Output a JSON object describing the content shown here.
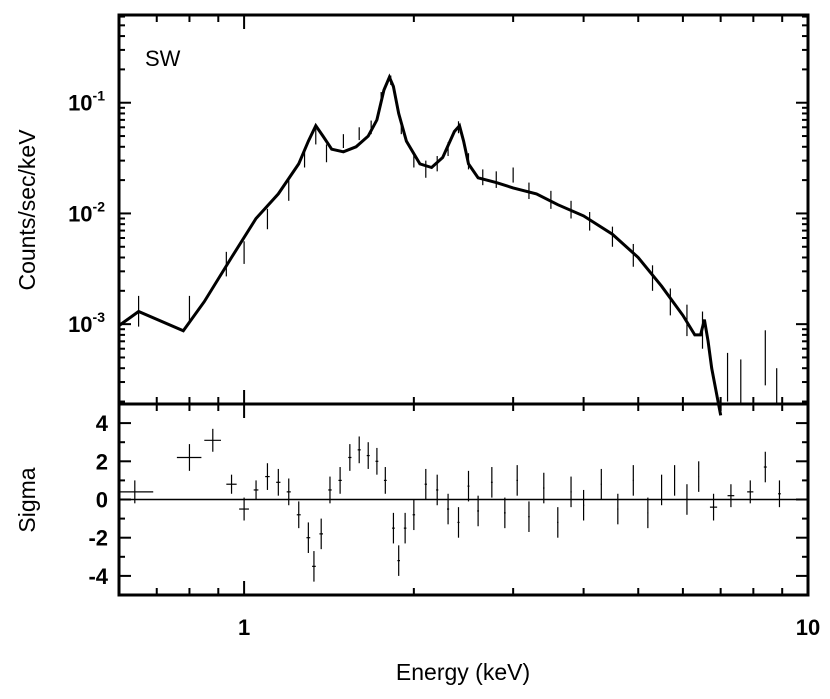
{
  "chart_data": [
    {
      "panel": "spectrum",
      "type": "line",
      "annotation": "SW",
      "xlabel": "Energy (keV)",
      "ylabel": "Counts/sec/keV",
      "x_scale": "log",
      "y_scale": "log",
      "xlim": [
        0.6,
        10
      ],
      "ylim": [
        0.00019,
        0.62
      ],
      "y_ticks": [
        {
          "value": 0.1,
          "base": "10",
          "exp": "-1"
        },
        {
          "value": 0.01,
          "base": "10",
          "exp": "-2"
        },
        {
          "value": 0.001,
          "base": "10",
          "exp": "-3"
        }
      ],
      "model_line": {
        "x": [
          0.6,
          0.65,
          0.78,
          0.85,
          0.95,
          1.05,
          1.15,
          1.25,
          1.3,
          1.34,
          1.38,
          1.43,
          1.5,
          1.58,
          1.66,
          1.72,
          1.77,
          1.81,
          1.84,
          1.88,
          1.94,
          2.05,
          2.15,
          2.25,
          2.36,
          2.41,
          2.45,
          2.5,
          2.6,
          2.8,
          3.0,
          3.3,
          3.6,
          4.0,
          4.5,
          5.0,
          5.5,
          6.0,
          6.3,
          6.45,
          6.55,
          6.65,
          6.75,
          7.0
        ],
        "y": [
          0.00097,
          0.0013,
          0.00087,
          0.0016,
          0.004,
          0.009,
          0.015,
          0.028,
          0.045,
          0.062,
          0.05,
          0.038,
          0.036,
          0.04,
          0.05,
          0.07,
          0.13,
          0.17,
          0.14,
          0.08,
          0.045,
          0.028,
          0.026,
          0.032,
          0.055,
          0.062,
          0.045,
          0.028,
          0.021,
          0.019,
          0.017,
          0.015,
          0.012,
          0.0095,
          0.0065,
          0.004,
          0.0022,
          0.0012,
          0.0008,
          0.0008,
          0.0011,
          0.0007,
          0.0004,
          0.00015
        ]
      },
      "data_points": [
        {
          "x": 0.65,
          "y": 0.0013,
          "y_lo": 0.00095,
          "y_hi": 0.0018
        },
        {
          "x": 0.8,
          "y": 0.0014,
          "y_lo": 0.001,
          "y_hi": 0.0018
        },
        {
          "x": 0.93,
          "y": 0.0035,
          "y_lo": 0.0027,
          "y_hi": 0.0045
        },
        {
          "x": 1.0,
          "y": 0.0045,
          "y_lo": 0.0035,
          "y_hi": 0.0056
        },
        {
          "x": 1.1,
          "y": 0.009,
          "y_lo": 0.0072,
          "y_hi": 0.011
        },
        {
          "x": 1.2,
          "y": 0.016,
          "y_lo": 0.013,
          "y_hi": 0.02
        },
        {
          "x": 1.28,
          "y": 0.032,
          "y_lo": 0.026,
          "y_hi": 0.039
        },
        {
          "x": 1.34,
          "y": 0.05,
          "y_lo": 0.042,
          "y_hi": 0.058
        },
        {
          "x": 1.4,
          "y": 0.035,
          "y_lo": 0.029,
          "y_hi": 0.042
        },
        {
          "x": 1.5,
          "y": 0.045,
          "y_lo": 0.039,
          "y_hi": 0.052
        },
        {
          "x": 1.6,
          "y": 0.053,
          "y_lo": 0.046,
          "y_hi": 0.06
        },
        {
          "x": 1.68,
          "y": 0.06,
          "y_lo": 0.052,
          "y_hi": 0.069
        },
        {
          "x": 1.75,
          "y": 0.11,
          "y_lo": 0.097,
          "y_hi": 0.125
        },
        {
          "x": 1.82,
          "y": 0.16,
          "y_lo": 0.145,
          "y_hi": 0.176
        },
        {
          "x": 1.9,
          "y": 0.06,
          "y_lo": 0.052,
          "y_hi": 0.068
        },
        {
          "x": 2.0,
          "y": 0.031,
          "y_lo": 0.026,
          "y_hi": 0.036
        },
        {
          "x": 2.1,
          "y": 0.025,
          "y_lo": 0.021,
          "y_hi": 0.03
        },
        {
          "x": 2.2,
          "y": 0.028,
          "y_lo": 0.024,
          "y_hi": 0.033
        },
        {
          "x": 2.3,
          "y": 0.038,
          "y_lo": 0.033,
          "y_hi": 0.044
        },
        {
          "x": 2.4,
          "y": 0.06,
          "y_lo": 0.053,
          "y_hi": 0.068
        },
        {
          "x": 2.5,
          "y": 0.03,
          "y_lo": 0.025,
          "y_hi": 0.035
        },
        {
          "x": 2.65,
          "y": 0.021,
          "y_lo": 0.018,
          "y_hi": 0.025
        },
        {
          "x": 2.8,
          "y": 0.02,
          "y_lo": 0.017,
          "y_hi": 0.024
        },
        {
          "x": 3.0,
          "y": 0.022,
          "y_lo": 0.019,
          "y_hi": 0.026
        },
        {
          "x": 3.2,
          "y": 0.016,
          "y_lo": 0.0135,
          "y_hi": 0.019
        },
        {
          "x": 3.5,
          "y": 0.0135,
          "y_lo": 0.011,
          "y_hi": 0.016
        },
        {
          "x": 3.8,
          "y": 0.011,
          "y_lo": 0.009,
          "y_hi": 0.013
        },
        {
          "x": 4.1,
          "y": 0.0085,
          "y_lo": 0.007,
          "y_hi": 0.0103
        },
        {
          "x": 4.5,
          "y": 0.0062,
          "y_lo": 0.005,
          "y_hi": 0.0076
        },
        {
          "x": 4.9,
          "y": 0.0042,
          "y_lo": 0.0033,
          "y_hi": 0.0053
        },
        {
          "x": 5.3,
          "y": 0.0026,
          "y_lo": 0.002,
          "y_hi": 0.0034
        },
        {
          "x": 5.7,
          "y": 0.0016,
          "y_lo": 0.0012,
          "y_hi": 0.0021
        },
        {
          "x": 6.1,
          "y": 0.0011,
          "y_lo": 0.00078,
          "y_hi": 0.0015
        },
        {
          "x": 6.5,
          "y": 0.0009,
          "y_lo": 0.0006,
          "y_hi": 0.0013
        },
        {
          "x": 7.2,
          "y": 0.00035,
          "y_lo": 0.0002,
          "y_hi": 0.00055
        },
        {
          "x": 7.6,
          "y": 0.0003,
          "y_lo": 0.00019,
          "y_hi": 0.00048
        },
        {
          "x": 8.4,
          "y": 0.0005,
          "y_lo": 0.00028,
          "y_hi": 0.00088
        },
        {
          "x": 8.8,
          "y": 0.00025,
          "y_lo": 0.00019,
          "y_hi": 0.0004
        }
      ]
    },
    {
      "panel": "residuals",
      "type": "scatter",
      "xlabel": "Energy (keV)",
      "ylabel": "Sigma",
      "x_scale": "log",
      "xlim": [
        0.6,
        10
      ],
      "ylim": [
        -5.0,
        5.0
      ],
      "x_tick_labels": [
        {
          "value": 1,
          "label": "1"
        },
        {
          "value": 10,
          "label": "10"
        }
      ],
      "y_tick_labels": [
        "4",
        "2",
        "0",
        "-2",
        "-4"
      ],
      "zero_line": 0,
      "points": [
        {
          "x": 0.64,
          "x_lo": 0.6,
          "x_hi": 0.69,
          "y": 0.4,
          "err": 0.6
        },
        {
          "x": 0.8,
          "x_lo": 0.76,
          "x_hi": 0.84,
          "y": 2.2,
          "err": 0.7
        },
        {
          "x": 0.88,
          "x_lo": 0.85,
          "x_hi": 0.91,
          "y": 3.1,
          "err": 0.6
        },
        {
          "x": 0.95,
          "x_lo": 0.93,
          "x_hi": 0.97,
          "y": 0.8,
          "err": 0.5
        },
        {
          "x": 1.0,
          "x_lo": 0.98,
          "x_hi": 1.02,
          "y": -0.5,
          "err": 0.6
        },
        {
          "x": 1.05,
          "x_lo": 1.04,
          "x_hi": 1.06,
          "y": 0.5,
          "err": 0.5
        },
        {
          "x": 1.1,
          "x_lo": 1.09,
          "x_hi": 1.11,
          "y": 1.2,
          "err": 0.7
        },
        {
          "x": 1.15,
          "x_lo": 1.14,
          "x_hi": 1.16,
          "y": 0.9,
          "err": 0.7
        },
        {
          "x": 1.2,
          "x_lo": 1.19,
          "x_hi": 1.21,
          "y": 0.4,
          "err": 0.7
        },
        {
          "x": 1.25,
          "x_lo": 1.24,
          "x_hi": 1.26,
          "y": -0.8,
          "err": 0.7
        },
        {
          "x": 1.3,
          "x_lo": 1.29,
          "x_hi": 1.31,
          "y": -2.0,
          "err": 0.8
        },
        {
          "x": 1.33,
          "x_lo": 1.32,
          "x_hi": 1.34,
          "y": -3.5,
          "err": 0.8
        },
        {
          "x": 1.37,
          "x_lo": 1.36,
          "x_hi": 1.38,
          "y": -1.8,
          "err": 0.8
        },
        {
          "x": 1.42,
          "x_lo": 1.41,
          "x_hi": 1.43,
          "y": 0.5,
          "err": 0.7
        },
        {
          "x": 1.48,
          "x_lo": 1.47,
          "x_hi": 1.49,
          "y": 1.0,
          "err": 0.7
        },
        {
          "x": 1.54,
          "x_lo": 1.53,
          "x_hi": 1.55,
          "y": 2.2,
          "err": 0.7
        },
        {
          "x": 1.6,
          "x_lo": 1.59,
          "x_hi": 1.61,
          "y": 2.6,
          "err": 0.7
        },
        {
          "x": 1.66,
          "x_lo": 1.65,
          "x_hi": 1.67,
          "y": 2.3,
          "err": 0.7
        },
        {
          "x": 1.72,
          "x_lo": 1.71,
          "x_hi": 1.73,
          "y": 2.0,
          "err": 0.7
        },
        {
          "x": 1.78,
          "x_lo": 1.77,
          "x_hi": 1.79,
          "y": 1.0,
          "err": 0.7
        },
        {
          "x": 1.84,
          "x_lo": 1.83,
          "x_hi": 1.85,
          "y": -1.5,
          "err": 0.8
        },
        {
          "x": 1.88,
          "x_lo": 1.87,
          "x_hi": 1.89,
          "y": -3.2,
          "err": 0.8
        },
        {
          "x": 1.93,
          "x_lo": 1.92,
          "x_hi": 1.94,
          "y": -1.5,
          "err": 0.8
        },
        {
          "x": 2.0,
          "x_lo": 1.99,
          "x_hi": 2.01,
          "y": -0.8,
          "err": 0.8
        },
        {
          "x": 2.1,
          "x_lo": 2.09,
          "x_hi": 2.11,
          "y": 0.8,
          "err": 0.8
        },
        {
          "x": 2.2,
          "x_lo": 2.19,
          "x_hi": 2.21,
          "y": 0.5,
          "err": 0.8
        },
        {
          "x": 2.3,
          "x_lo": 2.29,
          "x_hi": 2.31,
          "y": -0.5,
          "err": 0.8
        },
        {
          "x": 2.4,
          "x_lo": 2.39,
          "x_hi": 2.41,
          "y": -1.2,
          "err": 0.8
        },
        {
          "x": 2.5,
          "x_lo": 2.49,
          "x_hi": 2.51,
          "y": 0.7,
          "err": 0.8
        },
        {
          "x": 2.6,
          "x_lo": 2.59,
          "x_hi": 2.61,
          "y": -0.6,
          "err": 0.8
        },
        {
          "x": 2.75,
          "x_lo": 2.74,
          "x_hi": 2.76,
          "y": 0.9,
          "err": 0.8
        },
        {
          "x": 2.9,
          "x_lo": 2.89,
          "x_hi": 2.91,
          "y": -0.7,
          "err": 0.8
        },
        {
          "x": 3.05,
          "x_lo": 3.04,
          "x_hi": 3.06,
          "y": 1.0,
          "err": 0.8
        },
        {
          "x": 3.2,
          "x_lo": 3.19,
          "x_hi": 3.21,
          "y": -0.9,
          "err": 0.8
        },
        {
          "x": 3.4,
          "x_lo": 3.39,
          "x_hi": 3.41,
          "y": 0.6,
          "err": 0.8
        },
        {
          "x": 3.6,
          "x_lo": 3.59,
          "x_hi": 3.61,
          "y": -1.2,
          "err": 0.8
        },
        {
          "x": 3.8,
          "x_lo": 3.79,
          "x_hi": 3.81,
          "y": 0.4,
          "err": 0.8
        },
        {
          "x": 4.0,
          "x_lo": 3.99,
          "x_hi": 4.01,
          "y": -0.3,
          "err": 0.8
        },
        {
          "x": 4.3,
          "x_lo": 4.29,
          "x_hi": 4.31,
          "y": 0.8,
          "err": 0.8
        },
        {
          "x": 4.6,
          "x_lo": 4.59,
          "x_hi": 4.61,
          "y": -0.5,
          "err": 0.8
        },
        {
          "x": 4.9,
          "x_lo": 4.89,
          "x_hi": 4.91,
          "y": 1.0,
          "err": 0.8
        },
        {
          "x": 5.2,
          "x_lo": 5.19,
          "x_hi": 5.21,
          "y": -0.7,
          "err": 0.8
        },
        {
          "x": 5.5,
          "x_lo": 5.49,
          "x_hi": 5.51,
          "y": 0.5,
          "err": 0.8
        },
        {
          "x": 5.8,
          "x_lo": 5.79,
          "x_hi": 5.81,
          "y": 1.0,
          "err": 0.8
        },
        {
          "x": 6.1,
          "x_lo": 6.09,
          "x_hi": 6.11,
          "y": 0.0,
          "err": 0.8
        },
        {
          "x": 6.4,
          "x_lo": 6.39,
          "x_hi": 6.41,
          "y": 1.2,
          "err": 0.8
        },
        {
          "x": 6.8,
          "x_lo": 6.7,
          "x_hi": 6.9,
          "y": -0.4,
          "err": 0.7
        },
        {
          "x": 7.3,
          "x_lo": 7.2,
          "x_hi": 7.4,
          "y": 0.2,
          "err": 0.6
        },
        {
          "x": 7.9,
          "x_lo": 7.8,
          "x_hi": 8.0,
          "y": 0.4,
          "err": 0.6
        },
        {
          "x": 8.4,
          "x_lo": 8.35,
          "x_hi": 8.45,
          "y": 1.7,
          "err": 0.8
        },
        {
          "x": 8.9,
          "x_lo": 8.85,
          "x_hi": 8.95,
          "y": 0.3,
          "err": 0.7
        }
      ]
    }
  ]
}
